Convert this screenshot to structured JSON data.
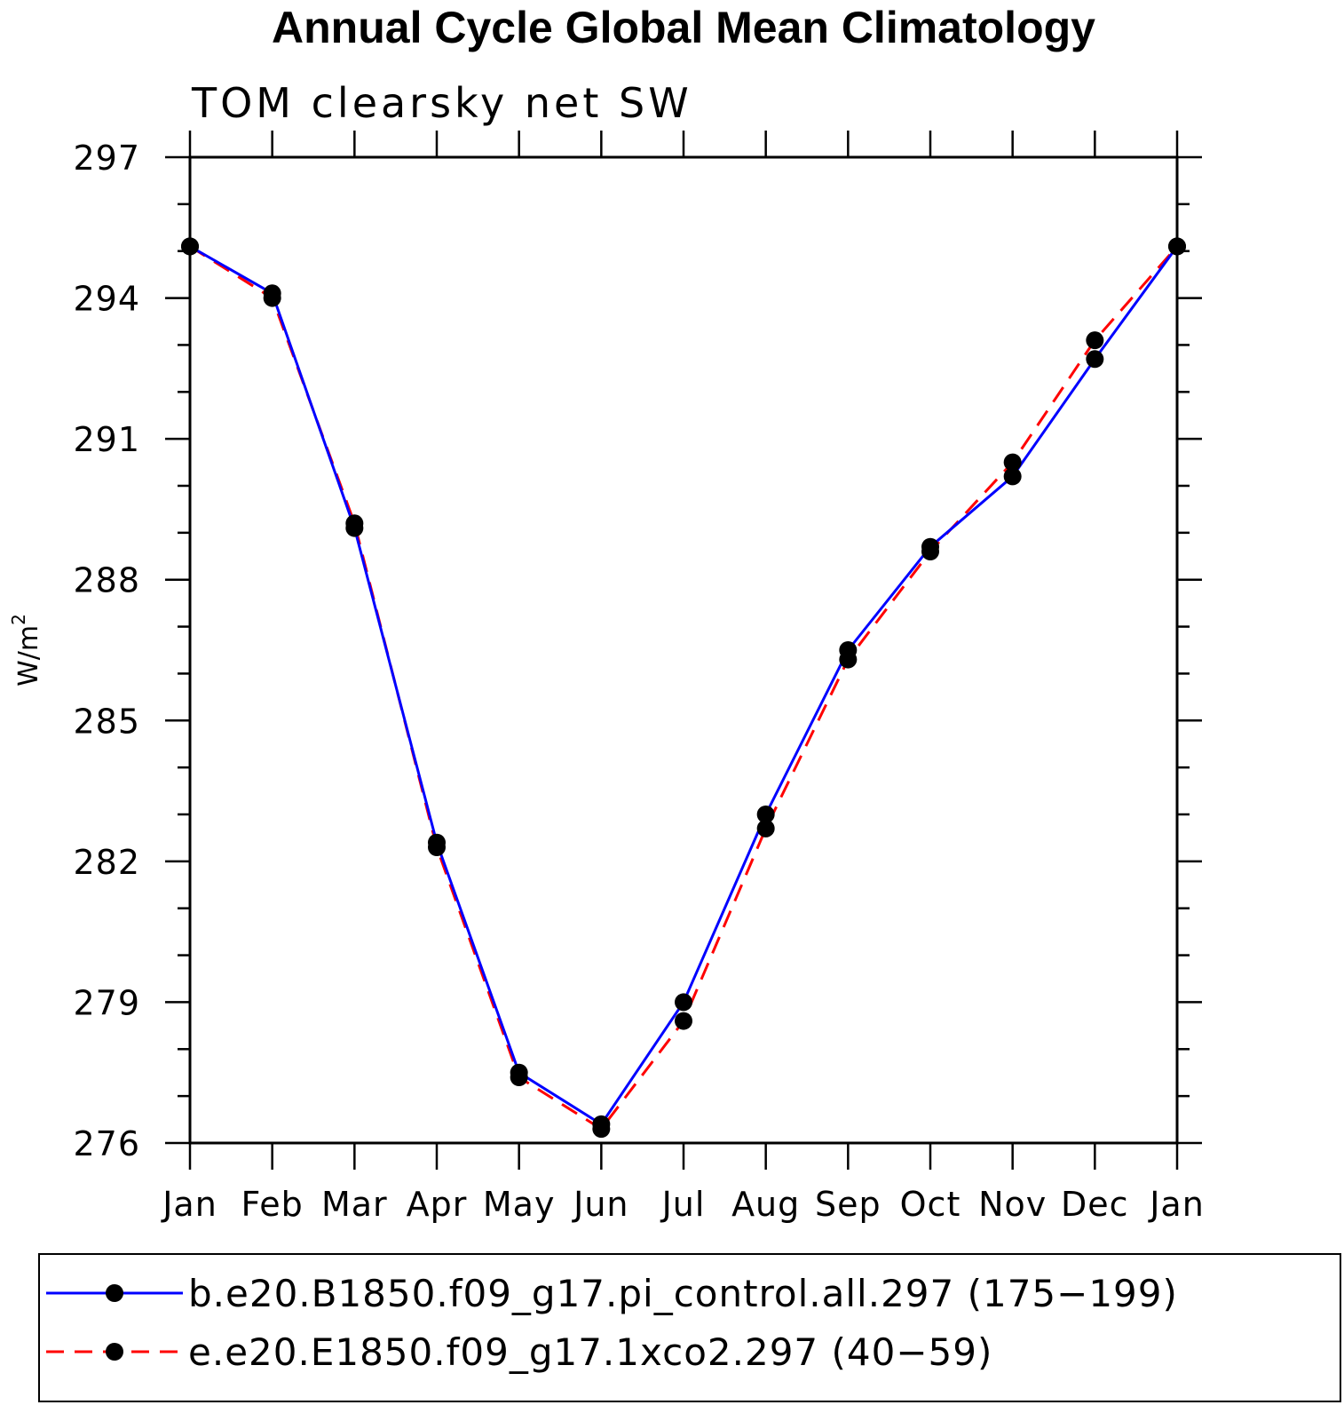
{
  "chart_data": {
    "type": "line",
    "title": "Annual Cycle Global Mean Climatology",
    "subtitle": "TOM clearsky net SW",
    "ylabel": "W/m",
    "ylabel_sup": "2",
    "categories": [
      "Jan",
      "Feb",
      "Mar",
      "Apr",
      "May",
      "Jun",
      "Jul",
      "Aug",
      "Sep",
      "Oct",
      "Nov",
      "Dec",
      "Jan"
    ],
    "ylim": [
      276,
      297
    ],
    "yticks": [
      276,
      279,
      282,
      285,
      288,
      291,
      294,
      297
    ],
    "yminor_step": 1,
    "series": [
      {
        "name": "b.e20.B1850.f09_g17.pi_control.all.297 (175−199)",
        "color": "#0000ff",
        "dash": "solid",
        "marker": "filled-circle",
        "values": [
          295.1,
          294.1,
          289.1,
          282.4,
          277.5,
          276.4,
          279.0,
          283.0,
          286.5,
          288.7,
          290.2,
          292.7,
          295.1
        ]
      },
      {
        "name": "e.e20.E1850.f09_g17.1xco2.297 (40−59)",
        "color": "#ff0000",
        "dash": "dashed",
        "marker": "filled-circle",
        "values": [
          295.1,
          294.0,
          289.2,
          282.3,
          277.4,
          276.3,
          278.6,
          282.7,
          286.3,
          288.6,
          290.5,
          293.1,
          295.1
        ]
      }
    ],
    "legend_position": "bottom",
    "grid": false
  }
}
